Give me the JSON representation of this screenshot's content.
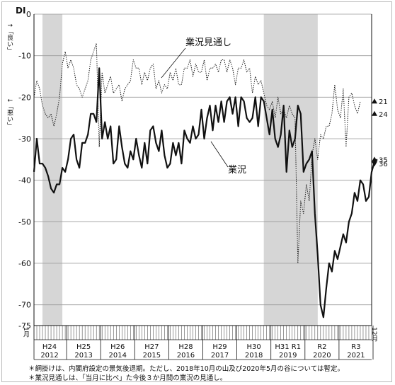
{
  "chart_data": {
    "type": "line",
    "ylabel": "DI",
    "y_axis_side_labels": {
      "up": "↑「良い」",
      "down": "↓「悪い」"
    },
    "ylim": [
      -75,
      0
    ],
    "yticks": [
      0,
      -10,
      -20,
      -30,
      -40,
      -50,
      -60,
      -70,
      -75
    ],
    "grid": true,
    "x_start_label": "1月",
    "x_end_label": "12月",
    "x_year_labels": [
      {
        "era": "H24",
        "year": "2012"
      },
      {
        "era": "H25",
        "year": "2013"
      },
      {
        "era": "H26",
        "year": "2014"
      },
      {
        "era": "H27",
        "year": "2015"
      },
      {
        "era": "H28",
        "year": "2016"
      },
      {
        "era": "H29",
        "year": "2017"
      },
      {
        "era": "H30",
        "year": "2018"
      },
      {
        "era": "H31 R1",
        "year": "2019"
      },
      {
        "era": "R2",
        "year": "2020"
      },
      {
        "era": "R3",
        "year": "2021"
      }
    ],
    "recession_shading": [
      {
        "from": "2012-04",
        "to": "2012-11"
      },
      {
        "from": "2018-10",
        "to": "2020-05"
      }
    ],
    "x_start": "2011-12",
    "series": [
      {
        "name": "業況",
        "style": "solid",
        "end_label": "35",
        "values": [
          -39,
          -38,
          -30,
          -36,
          -36,
          -37,
          -39,
          -42,
          -43,
          -41,
          -41,
          -37,
          -38,
          -35,
          -30,
          -29,
          -35,
          -37,
          -31,
          -31,
          -29,
          -24,
          -24,
          -26,
          -13,
          -30,
          -26,
          -30,
          -27,
          -36,
          -35,
          -27,
          -32,
          -36,
          -37,
          -33,
          -35,
          -30,
          -34,
          -37,
          -31,
          -36,
          -28,
          -27,
          -31,
          -33,
          -28,
          -34,
          -37,
          -36,
          -31,
          -34,
          -31,
          -36,
          -28,
          -30,
          -31,
          -27,
          -30,
          -29,
          -23,
          -30,
          -25,
          -22,
          -28,
          -22,
          -26,
          -21,
          -26,
          -21,
          -20,
          -24,
          -20,
          -27,
          -20,
          -21,
          -25,
          -26,
          -25,
          -20,
          -27,
          -20,
          -21,
          -25,
          -29,
          -23,
          -30,
          -32,
          -29,
          -22,
          -38,
          -28,
          -32,
          -30,
          -22,
          -24,
          -38,
          -36,
          -35,
          -33,
          -48,
          -58,
          -70,
          -73,
          -66,
          -60,
          -62,
          -57,
          -59,
          -56,
          -53,
          -55,
          -50,
          -48,
          -43,
          -45,
          -40,
          -41,
          -45,
          -44,
          -38,
          -35.5,
          -35
        ],
        "x_start": "2011-12"
      },
      {
        "name": "業況見通し",
        "style": "dotted",
        "end_label": "21",
        "values": [
          -20,
          -20,
          -16,
          -18,
          -22,
          -24,
          -25,
          -24,
          -27,
          -24,
          -20,
          -12,
          -9,
          -13,
          -11,
          -13,
          -17,
          -18,
          -20,
          -18,
          -16,
          -11,
          -9,
          -7,
          -32,
          -14,
          -19,
          -17,
          -15,
          -19,
          -18,
          -17,
          -21,
          -18,
          -17,
          -16,
          -11,
          -13,
          -13,
          -17,
          -14,
          -16,
          -13,
          -12,
          -18,
          -16,
          -19,
          -17,
          -18,
          -14,
          -16,
          -13,
          -17,
          -17,
          -13,
          -13,
          -11,
          -15,
          -12,
          -14,
          -14,
          -11,
          -16,
          -13,
          -13,
          -12,
          -14,
          -11,
          -11,
          -14,
          -11,
          -13,
          -17,
          -13,
          -13,
          -11,
          -14,
          -13,
          -19,
          -15,
          -17,
          -16,
          -19,
          -22,
          -23,
          -21,
          -25,
          -20,
          -24,
          -23,
          -25,
          -22,
          -24,
          -25,
          -60,
          -45,
          -48,
          -41,
          -45,
          -34,
          -30,
          -35,
          -29,
          -30,
          -27,
          -27,
          -24,
          -17,
          -23,
          -25,
          -18,
          -32,
          -20,
          -19,
          -22,
          -24,
          -21
        ],
        "x_start": "2011-12"
      }
    ],
    "end_markers": [
      "21",
      "24",
      "35",
      "36"
    ]
  },
  "notes": [
    "＊網掛けは、内閣府設定の景気後退期。ただし、2018年10月の山及び2020年5月の谷については暫定。",
    "＊業況見通しは、「当月に比べ」た今後３か月間の業況の見通し。"
  ],
  "colors": {
    "line": "#111111",
    "shade": "#d6d6d6",
    "grid": "#9a9a9a"
  }
}
